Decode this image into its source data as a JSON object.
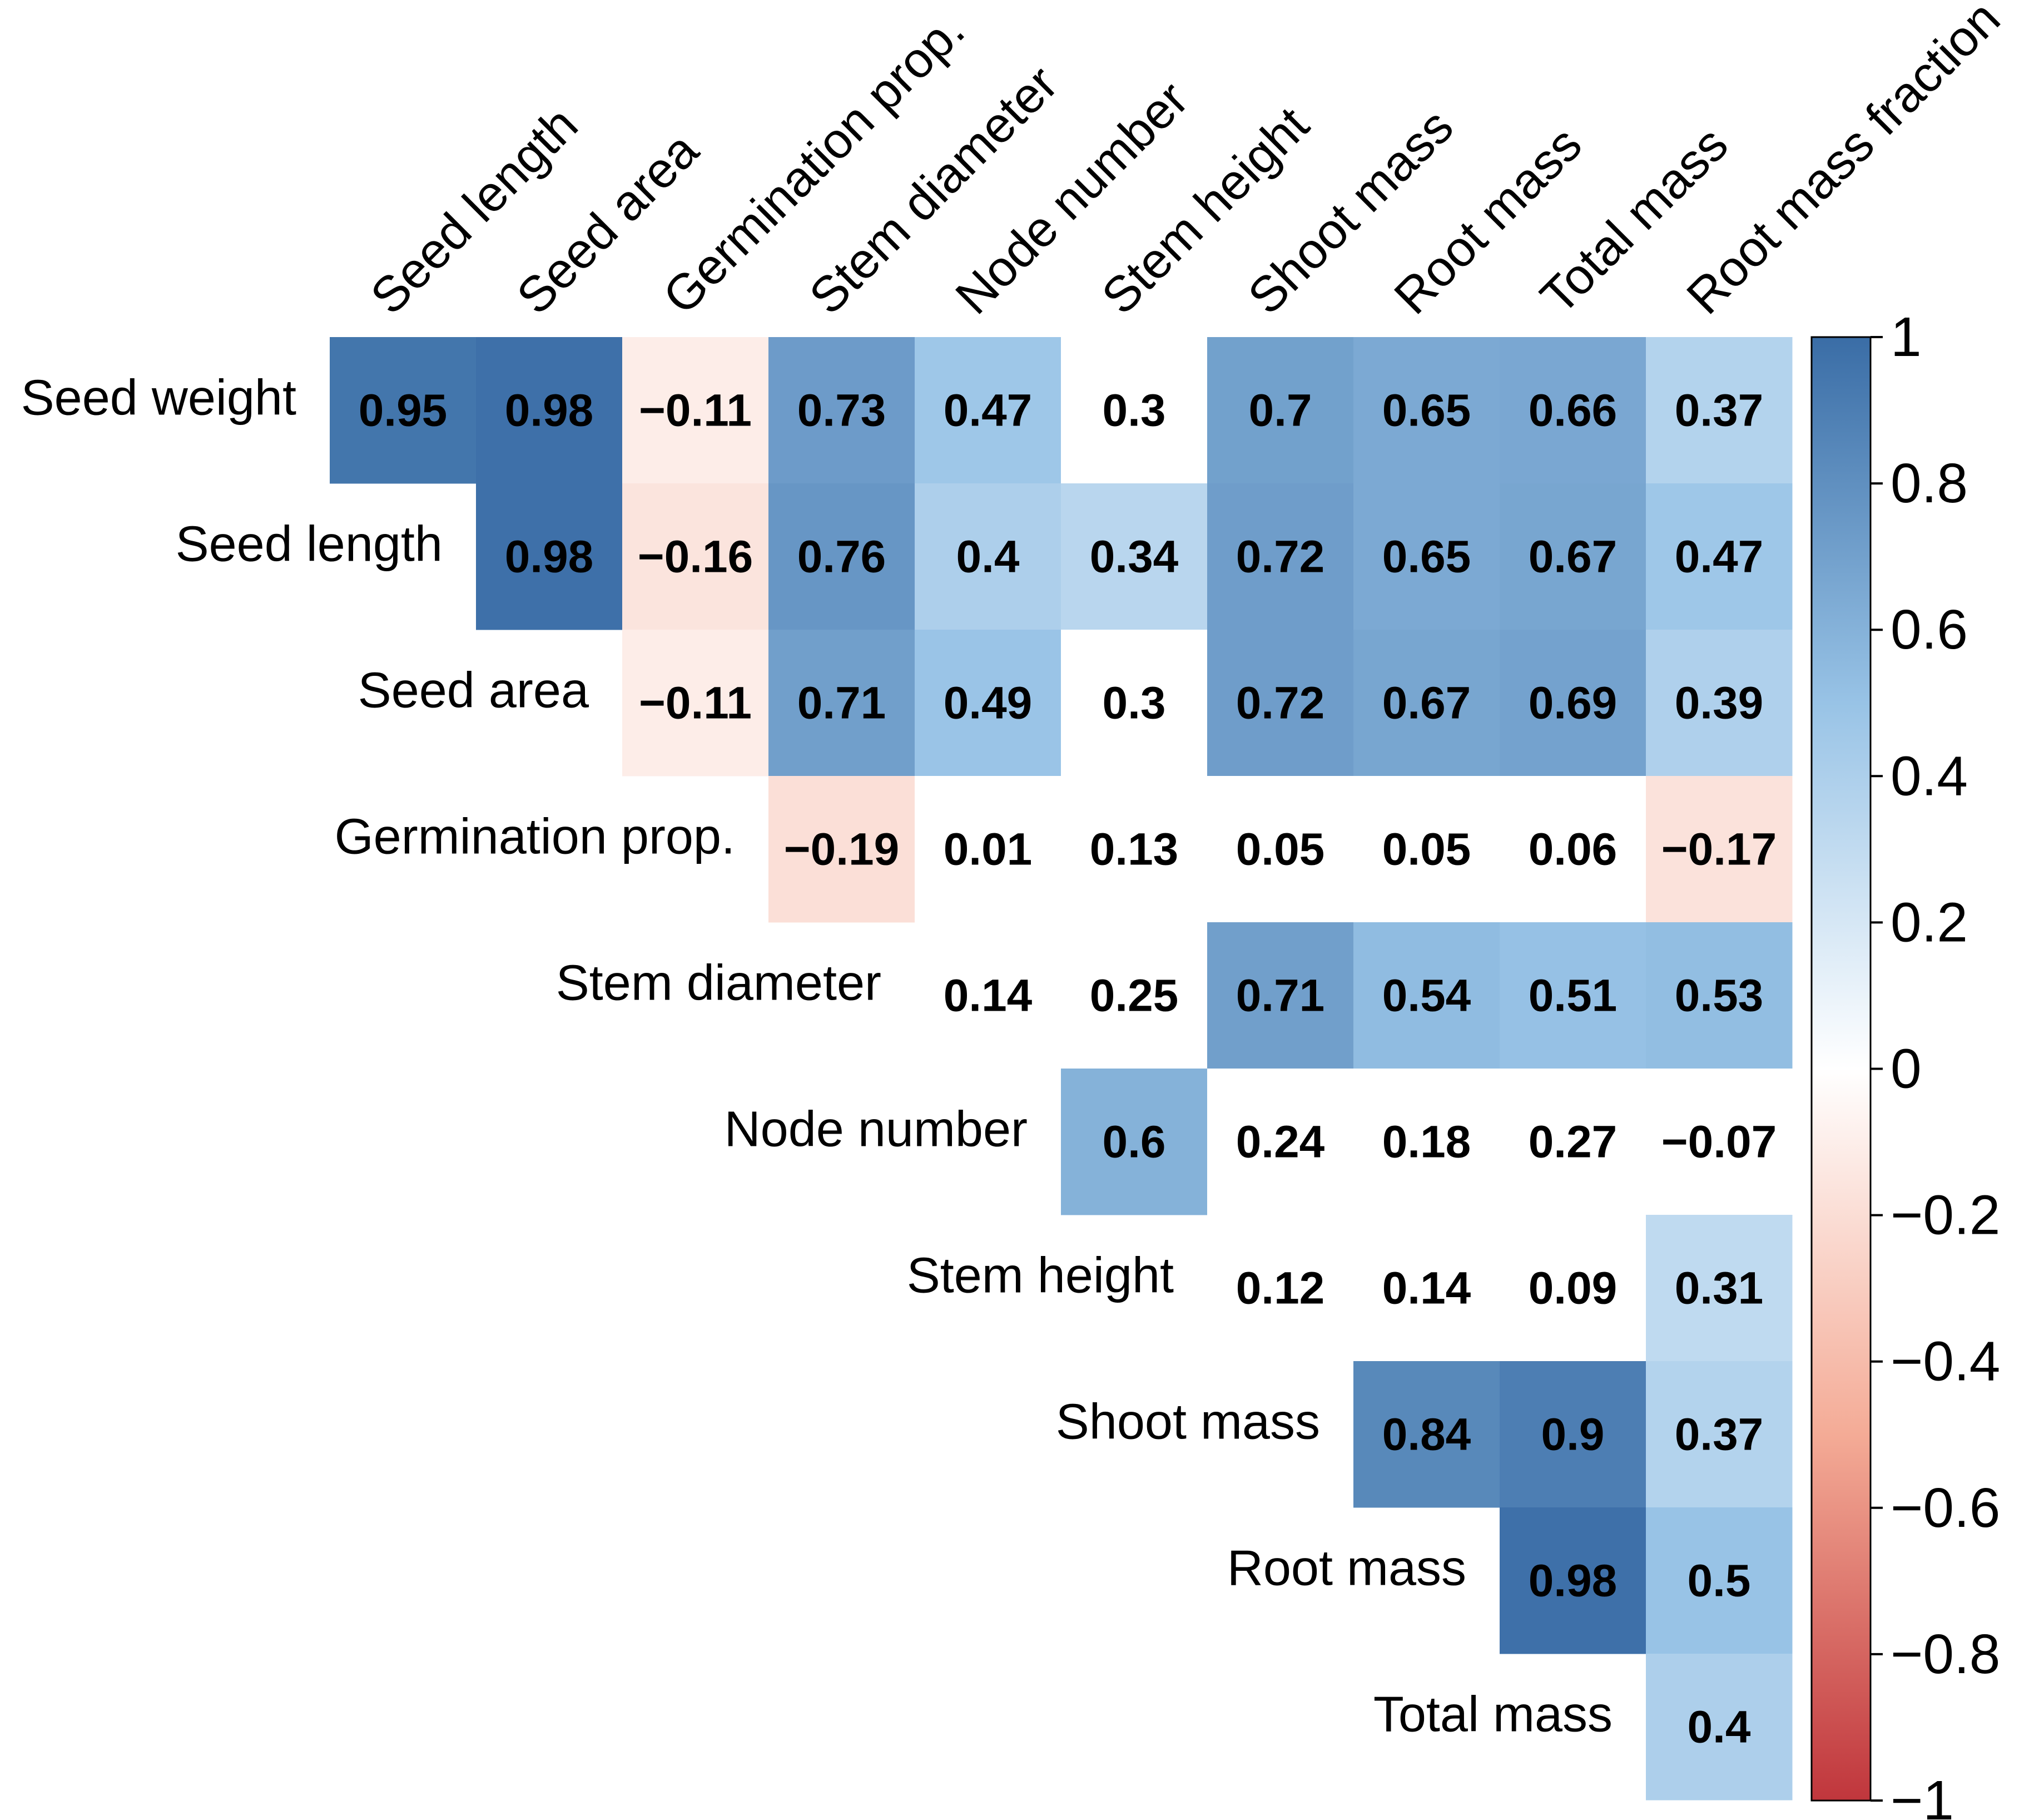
{
  "chart_data": {
    "type": "heatmap",
    "title": "",
    "row_labels": [
      "Seed weight",
      "Seed length",
      "Seed area",
      "Germination prop.",
      "Stem diameter",
      "Node number",
      "Stem height",
      "Shoot mass",
      "Root mass",
      "Total mass"
    ],
    "col_labels": [
      "Seed length",
      "Seed area",
      "Germination prop.",
      "Stem diameter",
      "Node number",
      "Stem height",
      "Shoot mass",
      "Root mass",
      "Total mass",
      "Root mass fraction"
    ],
    "cells": [
      {
        "row": 0,
        "col": 0,
        "value": 0.95,
        "label": "0.95"
      },
      {
        "row": 0,
        "col": 1,
        "value": 0.98,
        "label": "0.98"
      },
      {
        "row": 0,
        "col": 2,
        "value": -0.11,
        "label": "−0.11"
      },
      {
        "row": 0,
        "col": 3,
        "value": 0.73,
        "label": "0.73"
      },
      {
        "row": 0,
        "col": 4,
        "value": 0.47,
        "label": "0.47"
      },
      {
        "row": 0,
        "col": 5,
        "value": 0.3,
        "label": "0.3"
      },
      {
        "row": 0,
        "col": 6,
        "value": 0.7,
        "label": "0.7"
      },
      {
        "row": 0,
        "col": 7,
        "value": 0.65,
        "label": "0.65"
      },
      {
        "row": 0,
        "col": 8,
        "value": 0.66,
        "label": "0.66"
      },
      {
        "row": 0,
        "col": 9,
        "value": 0.37,
        "label": "0.37"
      },
      {
        "row": 1,
        "col": 1,
        "value": 0.98,
        "label": "0.98"
      },
      {
        "row": 1,
        "col": 2,
        "value": -0.16,
        "label": "−0.16"
      },
      {
        "row": 1,
        "col": 3,
        "value": 0.76,
        "label": "0.76"
      },
      {
        "row": 1,
        "col": 4,
        "value": 0.4,
        "label": "0.4"
      },
      {
        "row": 1,
        "col": 5,
        "value": 0.34,
        "label": "0.34"
      },
      {
        "row": 1,
        "col": 6,
        "value": 0.72,
        "label": "0.72"
      },
      {
        "row": 1,
        "col": 7,
        "value": 0.65,
        "label": "0.65"
      },
      {
        "row": 1,
        "col": 8,
        "value": 0.67,
        "label": "0.67"
      },
      {
        "row": 1,
        "col": 9,
        "value": 0.47,
        "label": "0.47"
      },
      {
        "row": 2,
        "col": 2,
        "value": -0.11,
        "label": "−0.11"
      },
      {
        "row": 2,
        "col": 3,
        "value": 0.71,
        "label": "0.71"
      },
      {
        "row": 2,
        "col": 4,
        "value": 0.49,
        "label": "0.49"
      },
      {
        "row": 2,
        "col": 5,
        "value": 0.3,
        "label": "0.3"
      },
      {
        "row": 2,
        "col": 6,
        "value": 0.72,
        "label": "0.72"
      },
      {
        "row": 2,
        "col": 7,
        "value": 0.67,
        "label": "0.67"
      },
      {
        "row": 2,
        "col": 8,
        "value": 0.69,
        "label": "0.69"
      },
      {
        "row": 2,
        "col": 9,
        "value": 0.39,
        "label": "0.39"
      },
      {
        "row": 3,
        "col": 3,
        "value": -0.19,
        "label": "−0.19"
      },
      {
        "row": 3,
        "col": 4,
        "value": 0.01,
        "label": "0.01"
      },
      {
        "row": 3,
        "col": 5,
        "value": 0.13,
        "label": "0.13"
      },
      {
        "row": 3,
        "col": 6,
        "value": 0.05,
        "label": "0.05"
      },
      {
        "row": 3,
        "col": 7,
        "value": 0.05,
        "label": "0.05"
      },
      {
        "row": 3,
        "col": 8,
        "value": 0.06,
        "label": "0.06"
      },
      {
        "row": 3,
        "col": 9,
        "value": -0.17,
        "label": "−0.17"
      },
      {
        "row": 4,
        "col": 4,
        "value": 0.14,
        "label": "0.14"
      },
      {
        "row": 4,
        "col": 5,
        "value": 0.25,
        "label": "0.25"
      },
      {
        "row": 4,
        "col": 6,
        "value": 0.71,
        "label": "0.71"
      },
      {
        "row": 4,
        "col": 7,
        "value": 0.54,
        "label": "0.54"
      },
      {
        "row": 4,
        "col": 8,
        "value": 0.51,
        "label": "0.51"
      },
      {
        "row": 4,
        "col": 9,
        "value": 0.53,
        "label": "0.53"
      },
      {
        "row": 5,
        "col": 5,
        "value": 0.6,
        "label": "0.6"
      },
      {
        "row": 5,
        "col": 6,
        "value": 0.24,
        "label": "0.24"
      },
      {
        "row": 5,
        "col": 7,
        "value": 0.18,
        "label": "0.18"
      },
      {
        "row": 5,
        "col": 8,
        "value": 0.27,
        "label": "0.27"
      },
      {
        "row": 5,
        "col": 9,
        "value": -0.07,
        "label": "−0.07"
      },
      {
        "row": 6,
        "col": 6,
        "value": 0.12,
        "label": "0.12"
      },
      {
        "row": 6,
        "col": 7,
        "value": 0.14,
        "label": "0.14"
      },
      {
        "row": 6,
        "col": 8,
        "value": 0.09,
        "label": "0.09"
      },
      {
        "row": 6,
        "col": 9,
        "value": 0.31,
        "label": "0.31"
      },
      {
        "row": 7,
        "col": 7,
        "value": 0.84,
        "label": "0.84"
      },
      {
        "row": 7,
        "col": 8,
        "value": 0.9,
        "label": "0.9"
      },
      {
        "row": 7,
        "col": 9,
        "value": 0.37,
        "label": "0.37"
      },
      {
        "row": 8,
        "col": 8,
        "value": 0.98,
        "label": "0.98"
      },
      {
        "row": 8,
        "col": 9,
        "value": 0.5,
        "label": "0.5"
      },
      {
        "row": 9,
        "col": 9,
        "value": 0.4,
        "label": "0.4"
      }
    ],
    "color_scale": {
      "min": -1,
      "max": 1,
      "low_color": "#c0363c",
      "mid_low_color": "#f4ab96",
      "mid_color": "#ffffff",
      "mid_high_color": "#98c3e6",
      "high_color": "#3a6da6",
      "neutral_band": [
        -0.1,
        0.3
      ],
      "ticks": [
        {
          "value": 1,
          "label": "1"
        },
        {
          "value": 0.8,
          "label": "0.8"
        },
        {
          "value": 0.6,
          "label": "0.6"
        },
        {
          "value": 0.4,
          "label": "0.4"
        },
        {
          "value": 0.2,
          "label": "0.2"
        },
        {
          "value": 0,
          "label": "0"
        },
        {
          "value": -0.2,
          "label": "−0.2"
        },
        {
          "value": -0.4,
          "label": "−0.4"
        },
        {
          "value": -0.6,
          "label": "−0.6"
        },
        {
          "value": -0.8,
          "label": "−0.8"
        },
        {
          "value": -1,
          "label": "−1"
        }
      ]
    }
  }
}
